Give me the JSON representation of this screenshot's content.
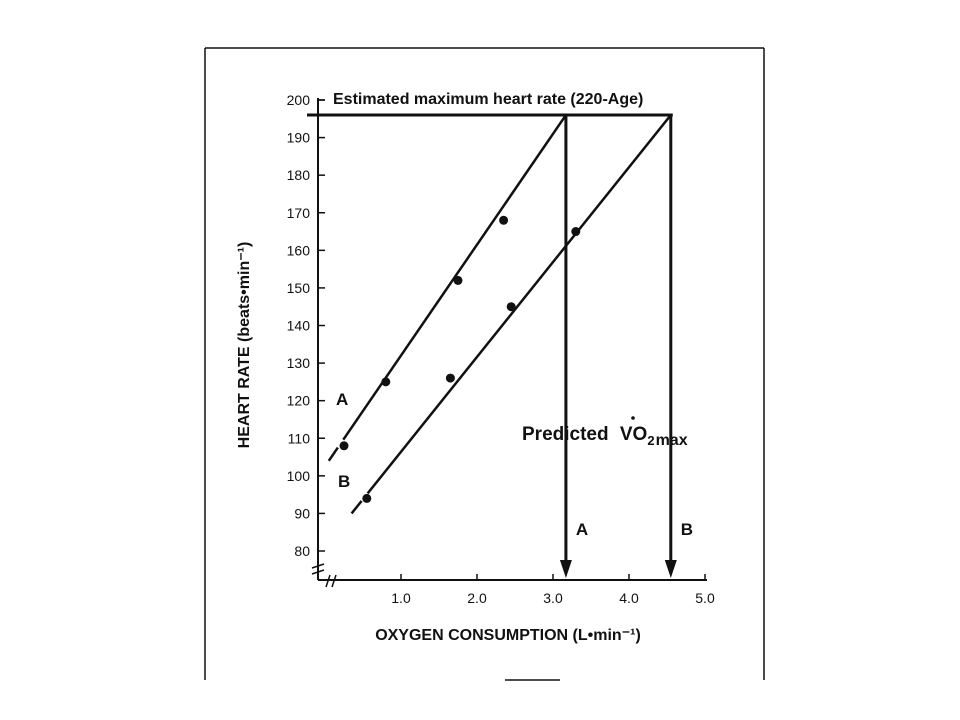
{
  "chart_data": {
    "type": "line",
    "title": "",
    "xlabel": "OXYGEN CONSUMPTION (L•min⁻¹)",
    "ylabel": "HEART RATE (beats•min⁻¹)",
    "xlim": [
      0,
      5.0
    ],
    "ylim": [
      75,
      200
    ],
    "x_ticks": [
      "1.0",
      "2.0",
      "3.0",
      "4.0",
      "5.0"
    ],
    "x_tick_values": [
      1.0,
      2.0,
      3.0,
      4.0,
      5.0
    ],
    "y_ticks": [
      "80",
      "90",
      "100",
      "110",
      "120",
      "130",
      "140",
      "150",
      "160",
      "170",
      "180",
      "190",
      "200"
    ],
    "y_tick_values": [
      80,
      90,
      100,
      110,
      120,
      130,
      140,
      150,
      160,
      170,
      180,
      190,
      200
    ],
    "grid": false,
    "max_hr": {
      "label": "Estimated maximum heart rate (220-Age)",
      "value": 196
    },
    "predicted_label": "Predicted",
    "predicted_vo2": "VO",
    "predicted_sub": "2",
    "predicted_max": "max",
    "series": [
      {
        "name": "A",
        "points": [
          {
            "x": 0.25,
            "y": 108
          },
          {
            "x": 0.8,
            "y": 125
          },
          {
            "x": 1.75,
            "y": 152
          },
          {
            "x": 2.35,
            "y": 168
          }
        ],
        "line_from": {
          "x": 0.05,
          "y": 104
        },
        "line_to": {
          "x": 3.17,
          "y": 196
        },
        "arrow_label": "A",
        "predicted_vo2max": 3.17
      },
      {
        "name": "B",
        "points": [
          {
            "x": 0.55,
            "y": 94
          },
          {
            "x": 1.65,
            "y": 126
          },
          {
            "x": 2.45,
            "y": 145
          },
          {
            "x": 3.3,
            "y": 165
          }
        ],
        "line_from": {
          "x": 0.35,
          "y": 90
        },
        "line_to": {
          "x": 4.55,
          "y": 196
        },
        "arrow_label": "B",
        "predicted_vo2max": 4.55
      }
    ]
  }
}
